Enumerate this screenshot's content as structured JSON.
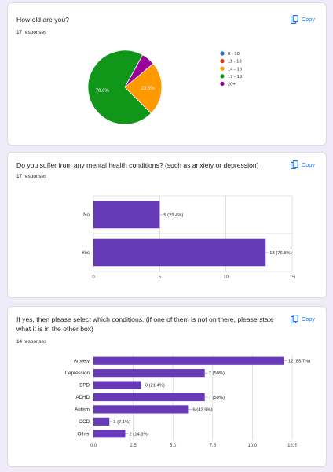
{
  "colors": {
    "copy": "#1a73e8",
    "bar": "#673ab7",
    "background": "#f0ebf8"
  },
  "copy_label": "Copy",
  "copy_icon": "copy-icon",
  "q1": {
    "title": "How old are you?",
    "responses": "17 responses"
  },
  "q2": {
    "title": "Do you suffer from any mental health conditions? (such as anxiety or depression)",
    "responses": "17 responses"
  },
  "q3": {
    "title_line1": "If yes, then please select which conditions. (if one of them is not on there, please state",
    "title_line2": "what it is in the other box)",
    "responses": "14 responses"
  },
  "chart_data": [
    {
      "type": "pie",
      "categories": [
        "0 - 10",
        "11 - 13",
        "14 - 16",
        "17 - 19",
        "20+"
      ],
      "values": [
        0,
        0,
        4,
        12,
        1
      ],
      "percent_labels": [
        "",
        "",
        "23.5%",
        "70.6%",
        ""
      ],
      "colors": [
        "#3366cc",
        "#dc3912",
        "#ff9900",
        "#109618",
        "#990099"
      ],
      "legend": "right"
    },
    {
      "type": "bar",
      "orientation": "horizontal",
      "categories": [
        "No",
        "Yes"
      ],
      "values": [
        5,
        13
      ],
      "data_labels": [
        "5 (29.4%)",
        "13 (76.5%)"
      ],
      "xlim": [
        0,
        15
      ],
      "ticks": [
        "0",
        "5",
        "10",
        "15"
      ],
      "grid": true
    },
    {
      "type": "bar",
      "orientation": "horizontal",
      "categories": [
        "Anxiety",
        "Depression",
        "BPD",
        "ADHD",
        "Autism",
        "OCD",
        "Other"
      ],
      "values": [
        12,
        7,
        3,
        7,
        6,
        1,
        2
      ],
      "data_labels": [
        "12 (85.7%)",
        "7 (50%)",
        "3 (21.4%)",
        "7 (50%)",
        "6 (42.9%)",
        "1 (7.1%)",
        "2 (14.3%)"
      ],
      "xlim": [
        0,
        12.5
      ],
      "ticks": [
        "0.0",
        "2.5",
        "5.0",
        "7.5",
        "10.0",
        "12.5"
      ],
      "grid": true
    }
  ]
}
